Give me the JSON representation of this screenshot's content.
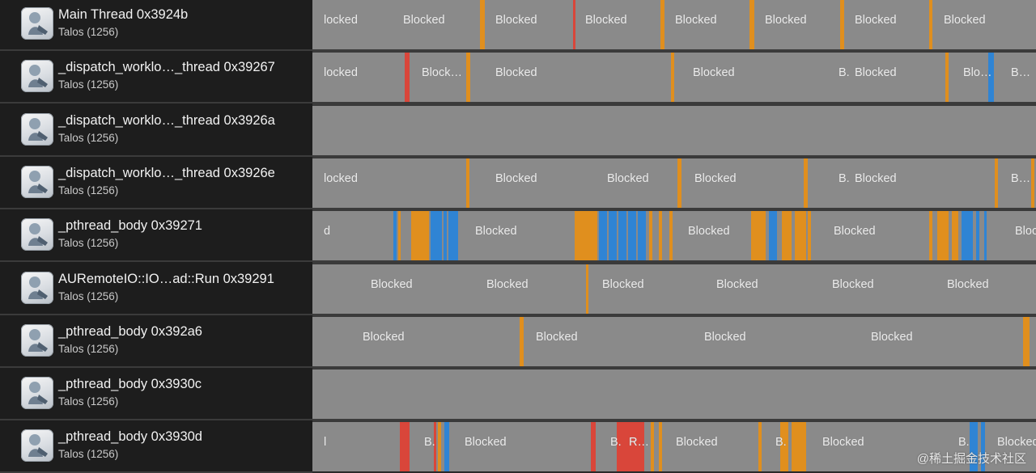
{
  "threads": [
    {
      "name": "Main Thread  0x3924b",
      "process": "Talos (1256)",
      "icon": "app-icon",
      "labels": [
        {
          "t": "locked",
          "x": 2
        },
        {
          "t": "Blocked",
          "x": 100
        },
        {
          "t": "Blocked",
          "x": 214
        },
        {
          "t": "Blocked",
          "x": 325
        },
        {
          "t": "Blocked",
          "x": 436
        },
        {
          "t": "Blocked",
          "x": 547
        },
        {
          "t": "Blocked",
          "x": 658
        },
        {
          "t": "Blocked",
          "x": 768
        }
      ],
      "bars": [
        {
          "x": 207,
          "w": 6,
          "c": "orange"
        },
        {
          "x": 322,
          "w": 3,
          "c": "red"
        },
        {
          "x": 430,
          "w": 5,
          "c": "orange"
        },
        {
          "x": 540,
          "w": 6,
          "c": "orange"
        },
        {
          "x": 652,
          "w": 5,
          "c": "orange"
        },
        {
          "x": 762,
          "w": 4,
          "c": "orange"
        }
      ]
    },
    {
      "name": "_dispatch_worklo…_thread  0x39267",
      "process": "Talos (1256)",
      "icon": "app-icon",
      "labels": [
        {
          "t": "locked",
          "x": 2
        },
        {
          "t": "Block…",
          "x": 123
        },
        {
          "t": "Blocked",
          "x": 214
        },
        {
          "t": "Blocked",
          "x": 458
        },
        {
          "t": "B.",
          "x": 638
        },
        {
          "t": "Blocked",
          "x": 658
        },
        {
          "t": "Blo…",
          "x": 792
        },
        {
          "t": "B…",
          "x": 851
        }
      ],
      "bars": [
        {
          "x": 114,
          "w": 6,
          "c": "red"
        },
        {
          "x": 190,
          "w": 5,
          "c": "orange"
        },
        {
          "x": 443,
          "w": 4,
          "c": "orange"
        },
        {
          "x": 782,
          "w": 4,
          "c": "orange"
        },
        {
          "x": 835,
          "w": 7,
          "c": "blue"
        }
      ]
    },
    {
      "name": "_dispatch_worklo…_thread  0x3926a",
      "process": "Talos (1256)",
      "icon": "app-icon",
      "labels": [],
      "bars": []
    },
    {
      "name": "_dispatch_worklo…_thread  0x3926e",
      "process": "Talos (1256)",
      "icon": "app-icon",
      "labels": [
        {
          "t": "locked",
          "x": 2
        },
        {
          "t": "Blocked",
          "x": 214
        },
        {
          "t": "Blocked",
          "x": 352
        },
        {
          "t": "Blocked",
          "x": 460
        },
        {
          "t": "B.",
          "x": 638
        },
        {
          "t": "Blocked",
          "x": 658
        },
        {
          "t": "B…",
          "x": 851
        }
      ],
      "bars": [
        {
          "x": 190,
          "w": 4,
          "c": "orange"
        },
        {
          "x": 451,
          "w": 5,
          "c": "orange"
        },
        {
          "x": 607,
          "w": 5,
          "c": "orange"
        },
        {
          "x": 843,
          "w": 4,
          "c": "orange"
        },
        {
          "x": 888,
          "w": 4,
          "c": "orange"
        }
      ]
    },
    {
      "name": "_pthread_body  0x39271",
      "process": "Talos (1256)",
      "icon": "app-icon",
      "labels": [
        {
          "t": "d",
          "x": 2
        },
        {
          "t": "Blocked",
          "x": 189
        },
        {
          "t": "Blocked",
          "x": 452
        },
        {
          "t": "Blocked",
          "x": 632
        },
        {
          "t": "Blocke",
          "x": 856
        }
      ],
      "bars": [
        {
          "x": 100,
          "w": 4,
          "c": "blue"
        },
        {
          "x": 106,
          "w": 3,
          "c": "orange"
        },
        {
          "x": 122,
          "w": 22,
          "c": "orange"
        },
        {
          "x": 146,
          "w": 14,
          "c": "blue"
        },
        {
          "x": 162,
          "w": 4,
          "c": "blue"
        },
        {
          "x": 168,
          "w": 12,
          "c": "blue"
        },
        {
          "x": 324,
          "w": 28,
          "c": "orange"
        },
        {
          "x": 354,
          "w": 10,
          "c": "blue"
        },
        {
          "x": 366,
          "w": 10,
          "c": "blue"
        },
        {
          "x": 378,
          "w": 10,
          "c": "blue"
        },
        {
          "x": 390,
          "w": 10,
          "c": "blue"
        },
        {
          "x": 402,
          "w": 10,
          "c": "blue"
        },
        {
          "x": 416,
          "w": 4,
          "c": "orange"
        },
        {
          "x": 428,
          "w": 4,
          "c": "orange"
        },
        {
          "x": 441,
          "w": 4,
          "c": "orange"
        },
        {
          "x": 542,
          "w": 18,
          "c": "orange"
        },
        {
          "x": 564,
          "w": 10,
          "c": "blue"
        },
        {
          "x": 580,
          "w": 12,
          "c": "orange"
        },
        {
          "x": 596,
          "w": 14,
          "c": "orange"
        },
        {
          "x": 612,
          "w": 4,
          "c": "orange"
        },
        {
          "x": 762,
          "w": 4,
          "c": "orange"
        },
        {
          "x": 772,
          "w": 14,
          "c": "orange"
        },
        {
          "x": 790,
          "w": 8,
          "c": "orange"
        },
        {
          "x": 802,
          "w": 14,
          "c": "blue"
        },
        {
          "x": 820,
          "w": 4,
          "c": "blue"
        },
        {
          "x": 830,
          "w": 3,
          "c": "blue"
        }
      ]
    },
    {
      "name": "AURemoteIO::IO…ad::Run  0x39291",
      "process": "Talos (1256)",
      "icon": "app-icon",
      "labels": [
        {
          "t": "Blocked",
          "x": 60
        },
        {
          "t": "Blocked",
          "x": 203
        },
        {
          "t": "Blocked",
          "x": 346
        },
        {
          "t": "Blocked",
          "x": 487
        },
        {
          "t": "Blocked",
          "x": 630
        },
        {
          "t": "Blocked",
          "x": 772
        }
      ],
      "bars": [
        {
          "x": 338,
          "w": 3,
          "c": "orange"
        }
      ]
    },
    {
      "name": "_pthread_body  0x392a6",
      "process": "Talos (1256)",
      "icon": "app-icon",
      "labels": [
        {
          "t": "Blocked",
          "x": 50
        },
        {
          "t": "Blocked",
          "x": 264
        },
        {
          "t": "Blocked",
          "x": 472
        },
        {
          "t": "Blocked",
          "x": 678
        }
      ],
      "bars": [
        {
          "x": 256,
          "w": 5,
          "c": "orange"
        },
        {
          "x": 878,
          "w": 8,
          "c": "orange"
        }
      ]
    },
    {
      "name": "_pthread_body  0x3930c",
      "process": "Talos (1256)",
      "icon": "app-icon",
      "labels": [],
      "bars": []
    },
    {
      "name": "_pthread_body  0x3930d",
      "process": "Talos (1256)",
      "icon": "app-icon",
      "labels": [
        {
          "t": "l",
          "x": 2
        },
        {
          "t": "B.",
          "x": 126
        },
        {
          "t": "Blocked",
          "x": 176
        },
        {
          "t": "B.",
          "x": 356
        },
        {
          "t": "R…",
          "x": 379
        },
        {
          "t": "Blocked",
          "x": 437
        },
        {
          "t": "B.",
          "x": 560
        },
        {
          "t": "Blocked",
          "x": 618
        },
        {
          "t": "B.",
          "x": 786
        },
        {
          "t": "Blocked",
          "x": 834
        }
      ],
      "bars": [
        {
          "x": 108,
          "w": 12,
          "c": "red"
        },
        {
          "x": 150,
          "w": 3,
          "c": "red"
        },
        {
          "x": 155,
          "w": 4,
          "c": "orange"
        },
        {
          "x": 163,
          "w": 6,
          "c": "blue"
        },
        {
          "x": 344,
          "w": 6,
          "c": "red"
        },
        {
          "x": 376,
          "w": 34,
          "c": "red"
        },
        {
          "x": 418,
          "w": 4,
          "c": "orange"
        },
        {
          "x": 428,
          "w": 4,
          "c": "orange"
        },
        {
          "x": 551,
          "w": 4,
          "c": "orange"
        },
        {
          "x": 578,
          "w": 10,
          "c": "orange"
        },
        {
          "x": 592,
          "w": 18,
          "c": "orange"
        },
        {
          "x": 812,
          "w": 10,
          "c": "blue"
        },
        {
          "x": 826,
          "w": 5,
          "c": "blue"
        }
      ]
    }
  ],
  "colors": {
    "orange": "#e08f1e",
    "blue": "#2f84d4",
    "red": "#d9463a",
    "segment": "#8a8a8a"
  },
  "watermark": "@稀土掘金技术社区"
}
